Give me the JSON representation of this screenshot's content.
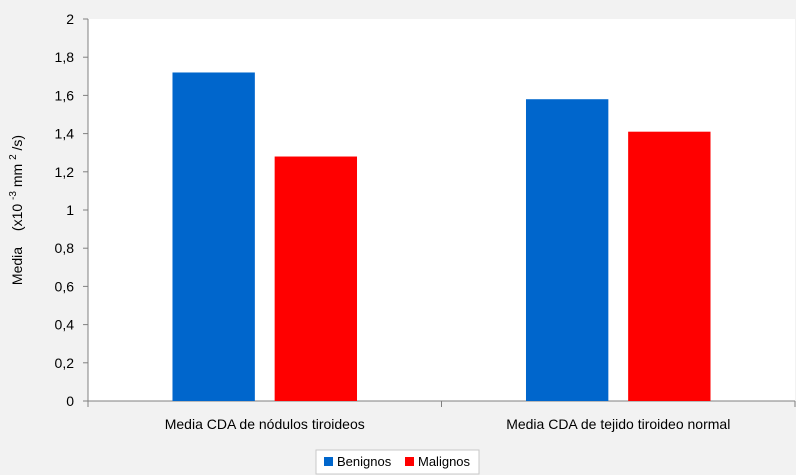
{
  "chart_data": {
    "type": "bar",
    "categories": [
      "Media CDA de nódulos tiroideos",
      "Media CDA de tejido tiroideo normal"
    ],
    "series": [
      {
        "name": "Benignos",
        "values": [
          1.72,
          1.58
        ],
        "color": "#0066cc"
      },
      {
        "name": "Malignos",
        "values": [
          1.28,
          1.41
        ],
        "color": "#ff0000"
      }
    ],
    "title": "",
    "xlabel": "",
    "ylabel": {
      "main": "Media",
      "unit_prefix": "(x10",
      "unit_exp1": "-3",
      "unit_mid": " mm",
      "unit_exp2": "2",
      "unit_suffix": "/s)"
    },
    "ylim": [
      0,
      2
    ],
    "yticks": [
      0,
      0.2,
      0.4,
      0.6,
      0.8,
      1,
      1.2,
      1.4,
      1.6,
      1.8,
      2
    ],
    "ytick_labels": [
      "0",
      "0,2",
      "0,4",
      "0,6",
      "0,8",
      "1",
      "1,2",
      "1,4",
      "1,6",
      "1,8",
      "2"
    ],
    "grid": false,
    "legend_position": "bottom",
    "plot_background": "#ffffff",
    "page_background": "#f2f2f2",
    "axis_color": "#808080"
  }
}
